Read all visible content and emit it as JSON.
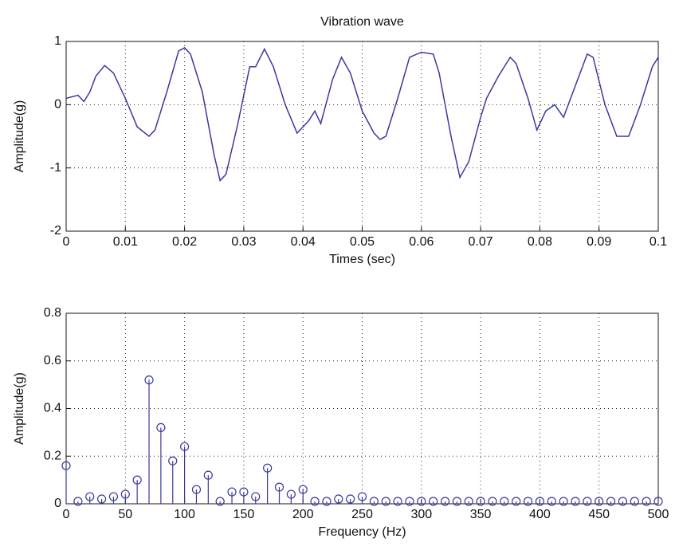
{
  "chart_data": [
    {
      "type": "line",
      "title": "Vibration wave",
      "xlabel": "Times (sec)",
      "ylabel": "Amplitude(g)",
      "color": "#3a3a9c",
      "grid": true,
      "xlim": [
        0,
        0.1
      ],
      "ylim": [
        -2,
        1
      ],
      "xticks": [
        0,
        0.01,
        0.02,
        0.03,
        0.04,
        0.05,
        0.06,
        0.07,
        0.08,
        0.09,
        0.1
      ],
      "yticks": [
        -2,
        -1,
        0,
        1
      ],
      "x": [
        0,
        0.002,
        0.003,
        0.004,
        0.005,
        0.0065,
        0.008,
        0.01,
        0.012,
        0.014,
        0.015,
        0.017,
        0.019,
        0.02,
        0.021,
        0.023,
        0.025,
        0.026,
        0.027,
        0.029,
        0.031,
        0.032,
        0.0335,
        0.035,
        0.037,
        0.039,
        0.041,
        0.042,
        0.043,
        0.045,
        0.0465,
        0.048,
        0.05,
        0.052,
        0.053,
        0.054,
        0.056,
        0.058,
        0.06,
        0.062,
        0.063,
        0.065,
        0.0665,
        0.068,
        0.07,
        0.071,
        0.073,
        0.075,
        0.076,
        0.078,
        0.0795,
        0.081,
        0.0825,
        0.084,
        0.086,
        0.088,
        0.089,
        0.091,
        0.093,
        0.095,
        0.097,
        0.099,
        0.1
      ],
      "values": [
        0.1,
        0.15,
        0.05,
        0.2,
        0.45,
        0.62,
        0.5,
        0.1,
        -0.35,
        -0.5,
        -0.4,
        0.2,
        0.85,
        0.9,
        0.8,
        0.2,
        -0.8,
        -1.2,
        -1.1,
        -0.3,
        0.6,
        0.6,
        0.88,
        0.6,
        0.0,
        -0.45,
        -0.25,
        -0.1,
        -0.3,
        0.4,
        0.75,
        0.5,
        -0.1,
        -0.45,
        -0.55,
        -0.5,
        0.1,
        0.75,
        0.83,
        0.8,
        0.5,
        -0.5,
        -1.15,
        -0.9,
        -0.2,
        0.1,
        0.45,
        0.75,
        0.65,
        0.1,
        -0.4,
        -0.1,
        0.0,
        -0.2,
        0.3,
        0.8,
        0.75,
        0.0,
        -0.5,
        -0.5,
        0.0,
        0.6,
        0.75
      ]
    },
    {
      "type": "stem",
      "xlabel": "Frequency (Hz)",
      "ylabel": "Amplitude(g)",
      "color": "#3a3a9c",
      "grid": true,
      "xlim": [
        0,
        500
      ],
      "ylim": [
        0,
        0.8
      ],
      "xticks": [
        0,
        50,
        100,
        150,
        200,
        250,
        300,
        350,
        400,
        450,
        500
      ],
      "yticks": [
        0,
        0.2,
        0.4,
        0.6,
        0.8
      ],
      "x": [
        0,
        10,
        20,
        30,
        40,
        50,
        60,
        70,
        80,
        90,
        100,
        110,
        120,
        130,
        140,
        150,
        160,
        170,
        180,
        190,
        200,
        210,
        220,
        230,
        240,
        250,
        260,
        270,
        280,
        290,
        300,
        310,
        320,
        330,
        340,
        350,
        360,
        370,
        380,
        390,
        400,
        410,
        420,
        430,
        440,
        450,
        460,
        470,
        480,
        490,
        500
      ],
      "values": [
        0.16,
        0.01,
        0.03,
        0.02,
        0.03,
        0.04,
        0.1,
        0.52,
        0.32,
        0.18,
        0.24,
        0.06,
        0.12,
        0.01,
        0.05,
        0.05,
        0.03,
        0.15,
        0.07,
        0.04,
        0.06,
        0.01,
        0.01,
        0.02,
        0.02,
        0.03,
        0.01,
        0.01,
        0.01,
        0.01,
        0.01,
        0.01,
        0.01,
        0.01,
        0.01,
        0.01,
        0.01,
        0.01,
        0.01,
        0.01,
        0.01,
        0.01,
        0.01,
        0.01,
        0.01,
        0.01,
        0.01,
        0.01,
        0.01,
        0.01,
        0.01
      ]
    }
  ]
}
